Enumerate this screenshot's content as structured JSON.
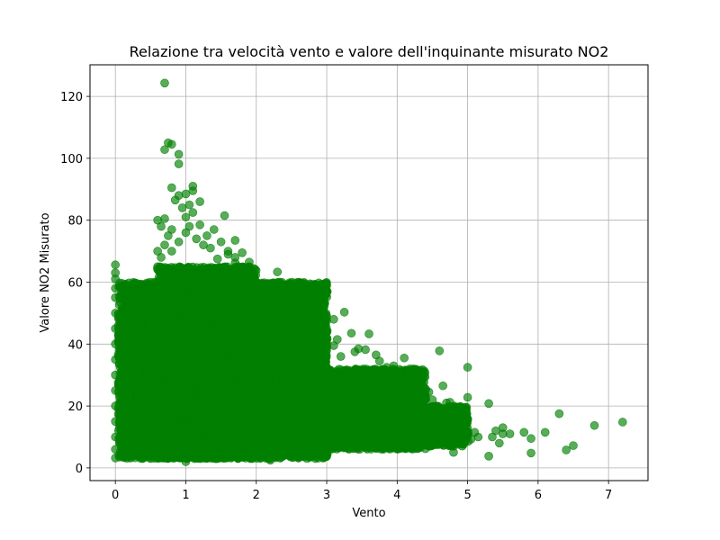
{
  "chart_data": {
    "type": "scatter",
    "title": "Relazione tra velocità vento e valore dell'inquinante misurato NO2",
    "xlabel": "Vento",
    "ylabel": "Valore NO2 Misurato",
    "xlim": [
      -0.36,
      7.56
    ],
    "ylim": [
      -4.1,
      130.2
    ],
    "xticks": [
      0,
      1,
      2,
      3,
      4,
      5,
      6,
      7
    ],
    "yticks": [
      0,
      20,
      40,
      60,
      80,
      100,
      120
    ],
    "grid": true,
    "legend": "none",
    "marker_color": "#008000",
    "marker_opacity": 0.65,
    "series": [
      {
        "points": [
          [
            0.7,
            124.3
          ],
          [
            0.75,
            105
          ],
          [
            0.8,
            104.5
          ],
          [
            0.7,
            102.8
          ],
          [
            0.9,
            101.3
          ],
          [
            0.9,
            98.2
          ],
          [
            1.1,
            91
          ],
          [
            1.1,
            89.5
          ],
          [
            1.0,
            88.5
          ],
          [
            0.9,
            88
          ],
          [
            0.8,
            90.5
          ],
          [
            1.2,
            86
          ],
          [
            0.85,
            86.5
          ],
          [
            1.05,
            85
          ],
          [
            0.95,
            84
          ],
          [
            1.1,
            82.5
          ],
          [
            1.0,
            81
          ],
          [
            0.7,
            80.5
          ],
          [
            1.55,
            81.5
          ],
          [
            1.2,
            78.5
          ],
          [
            0.6,
            80
          ],
          [
            0.65,
            78
          ],
          [
            0.8,
            77
          ],
          [
            1.4,
            77
          ],
          [
            1.3,
            75
          ],
          [
            1.7,
            73.5
          ],
          [
            1.5,
            73
          ],
          [
            1.6,
            70
          ],
          [
            1.8,
            69.5
          ],
          [
            1.45,
            67.5
          ],
          [
            1.9,
            66.5
          ],
          [
            1.9,
            65
          ],
          [
            1.7,
            66.2
          ],
          [
            2.3,
            63.3
          ],
          [
            0.6,
            70
          ],
          [
            0.0,
            65.6
          ],
          [
            0.0,
            63
          ],
          [
            0.0,
            61
          ],
          [
            0.0,
            58
          ],
          [
            0.0,
            55
          ],
          [
            0.0,
            50
          ],
          [
            0.0,
            45
          ],
          [
            0.0,
            40
          ],
          [
            0.0,
            35
          ],
          [
            0.0,
            30
          ],
          [
            0.0,
            25
          ],
          [
            0.0,
            20
          ],
          [
            0.0,
            15
          ],
          [
            0.0,
            10
          ],
          [
            0.0,
            6
          ],
          [
            0.0,
            3.2
          ],
          [
            2.4,
            55
          ],
          [
            2.2,
            52
          ],
          [
            2.5,
            49
          ],
          [
            2.4,
            47
          ],
          [
            2.7,
            46.5
          ],
          [
            2.8,
            44
          ],
          [
            3.0,
            49
          ],
          [
            3.0,
            47.5
          ],
          [
            3.1,
            48
          ],
          [
            3.25,
            50.3
          ],
          [
            2.9,
            42
          ],
          [
            3.35,
            43.5
          ],
          [
            3.15,
            41.5
          ],
          [
            3.1,
            39.5
          ],
          [
            3.0,
            40
          ],
          [
            3.2,
            36
          ],
          [
            3.45,
            38.5
          ],
          [
            3.55,
            38.2
          ],
          [
            3.6,
            43.3
          ],
          [
            3.4,
            37.5
          ],
          [
            3.7,
            36.5
          ],
          [
            3.75,
            34.5
          ],
          [
            3.85,
            32.5
          ],
          [
            3.9,
            30
          ],
          [
            3.95,
            33
          ],
          [
            4.1,
            35.5
          ],
          [
            3.8,
            29.5
          ],
          [
            3.6,
            28
          ],
          [
            3.5,
            27
          ],
          [
            3.85,
            26.5
          ],
          [
            4.2,
            27
          ],
          [
            4.0,
            25
          ],
          [
            4.3,
            24
          ],
          [
            4.4,
            23
          ],
          [
            4.45,
            24.5
          ],
          [
            4.6,
            37.8
          ],
          [
            4.65,
            26.5
          ],
          [
            4.5,
            22
          ],
          [
            4.7,
            21
          ],
          [
            4.75,
            21.2
          ],
          [
            4.2,
            22
          ],
          [
            4.1,
            20.5
          ],
          [
            4.3,
            19.5
          ],
          [
            4.6,
            18.5
          ],
          [
            4.7,
            17
          ],
          [
            4.9,
            15.5
          ],
          [
            4.85,
            13
          ],
          [
            4.9,
            11
          ],
          [
            4.95,
            9.5
          ],
          [
            5.0,
            32.5
          ],
          [
            5.0,
            22.8
          ],
          [
            5.3,
            20.8
          ],
          [
            5.0,
            10.5
          ],
          [
            5.1,
            11.5
          ],
          [
            5.15,
            10
          ],
          [
            5.05,
            9.3
          ],
          [
            4.8,
            10.5
          ],
          [
            4.8,
            12.5
          ],
          [
            4.8,
            9
          ],
          [
            4.9,
            8
          ],
          [
            4.8,
            7
          ],
          [
            4.8,
            5
          ],
          [
            5.4,
            12
          ],
          [
            5.5,
            13
          ],
          [
            5.5,
            11
          ],
          [
            5.35,
            10
          ],
          [
            5.6,
            11
          ],
          [
            5.45,
            8
          ],
          [
            5.3,
            3.8
          ],
          [
            5.8,
            11.5
          ],
          [
            5.9,
            9.5
          ],
          [
            6.1,
            11.5
          ],
          [
            6.3,
            17.5
          ],
          [
            5.9,
            4.8
          ],
          [
            6.4,
            5.8
          ],
          [
            6.5,
            7.2
          ],
          [
            6.8,
            13.7
          ],
          [
            7.2,
            14.8
          ],
          [
            4.4,
            15
          ],
          [
            4.5,
            12
          ],
          [
            4.3,
            11
          ],
          [
            4.2,
            10
          ],
          [
            4.0,
            9
          ],
          [
            4.1,
            8
          ],
          [
            3.9,
            12
          ],
          [
            3.7,
            14
          ],
          [
            3.5,
            16
          ],
          [
            3.3,
            18
          ],
          [
            3.2,
            12
          ],
          [
            3.1,
            9
          ],
          [
            3.0,
            3.8
          ],
          [
            2.6,
            3.2
          ],
          [
            2.4,
            4
          ],
          [
            2.2,
            2.5
          ],
          [
            1.0,
            2
          ],
          [
            0.5,
            3
          ],
          [
            0.3,
            5
          ],
          [
            0.2,
            4.5
          ],
          [
            0.1,
            40
          ],
          [
            0.15,
            42
          ],
          [
            0.2,
            44
          ],
          [
            0.3,
            43
          ],
          [
            0.4,
            41
          ],
          [
            0.5,
            55
          ],
          [
            0.5,
            58
          ],
          [
            0.55,
            60
          ],
          [
            0.6,
            65
          ],
          [
            0.65,
            68
          ],
          [
            0.7,
            72
          ],
          [
            0.75,
            75
          ],
          [
            0.8,
            70
          ],
          [
            0.9,
            73
          ],
          [
            1.0,
            76
          ],
          [
            1.05,
            78
          ],
          [
            1.15,
            74
          ],
          [
            1.25,
            72
          ],
          [
            1.35,
            71
          ],
          [
            1.6,
            69
          ],
          [
            1.7,
            68
          ],
          [
            1.75,
            65
          ],
          [
            1.85,
            62
          ],
          [
            2.0,
            60
          ],
          [
            2.1,
            58
          ],
          [
            2.2,
            56
          ],
          [
            2.3,
            54
          ],
          [
            2.45,
            53
          ],
          [
            2.55,
            51
          ],
          [
            2.65,
            50
          ],
          [
            2.75,
            48
          ],
          [
            2.85,
            47
          ],
          [
            2.95,
            45
          ]
        ]
      }
    ],
    "dense_regions": [
      {
        "x": [
          0.05,
          3.0
        ],
        "y_min": 3,
        "y_max": 60
      },
      {
        "x": [
          0.6,
          2.0
        ],
        "y_min": 3,
        "y_max": 65
      },
      {
        "x": [
          3.0,
          4.4
        ],
        "y_min": 6,
        "y_max": 32
      },
      {
        "x": [
          4.4,
          5.0
        ],
        "y_min": 7,
        "y_max": 20
      }
    ]
  }
}
